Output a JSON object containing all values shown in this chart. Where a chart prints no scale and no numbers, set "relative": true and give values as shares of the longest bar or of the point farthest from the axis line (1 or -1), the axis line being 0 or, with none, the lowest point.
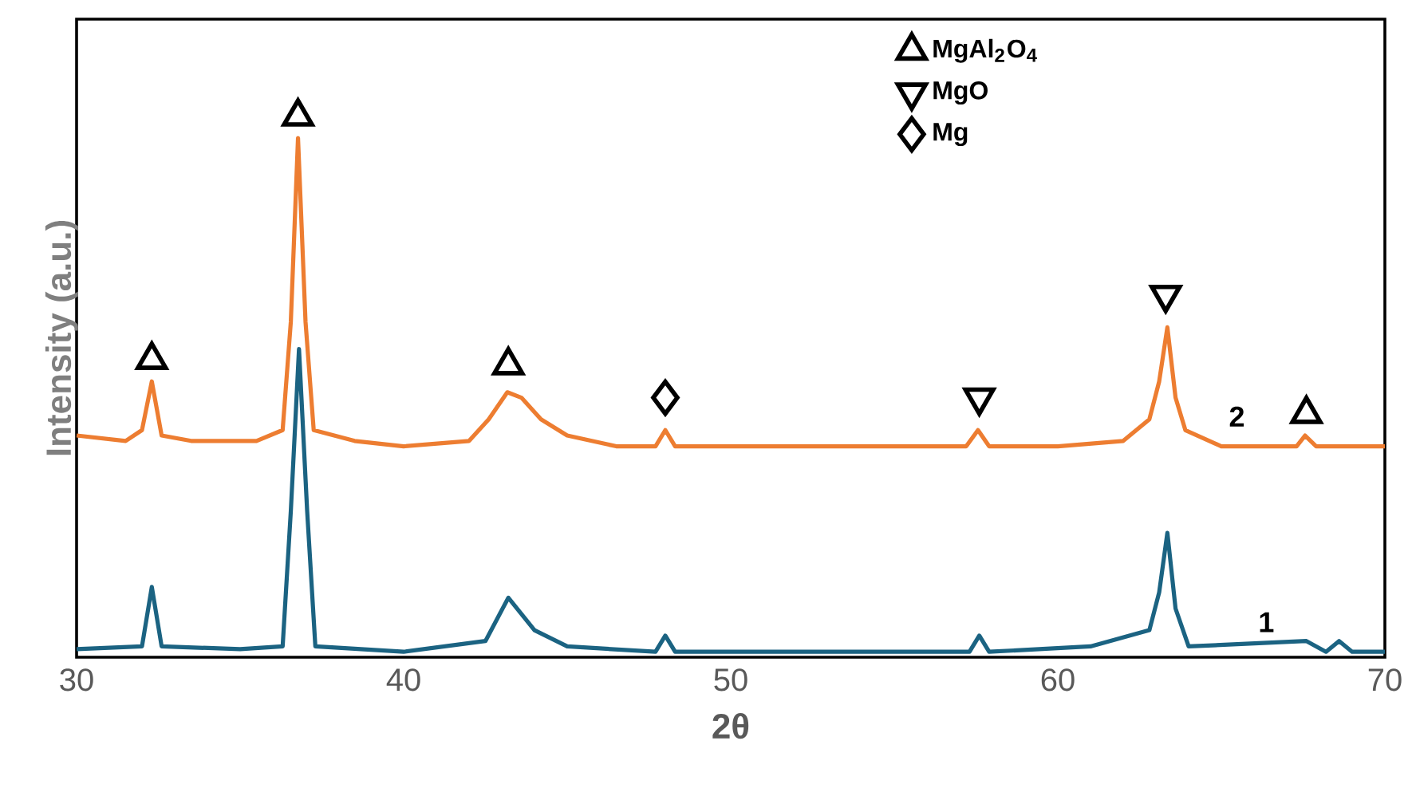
{
  "chart_data": {
    "type": "line",
    "xlabel": "2θ",
    "ylabel": "Intensity (a.u.)",
    "relative": true,
    "xlim": [
      30,
      70
    ],
    "xticks": [
      30,
      40,
      50,
      60,
      70
    ],
    "legend": "top",
    "grid": false,
    "series": [
      {
        "name": "1",
        "color": "#1b6382",
        "x": [
          30,
          32.0,
          32.3,
          32.6,
          35,
          36.3,
          36.55,
          36.8,
          37.05,
          37.3,
          40,
          42.5,
          43.2,
          44,
          45,
          47.7,
          48.0,
          48.3,
          57.3,
          57.6,
          57.9,
          61,
          62.8,
          63.1,
          63.35,
          63.6,
          64,
          67.6,
          68.2,
          68.6,
          69,
          70
        ],
        "values": [
          0.015,
          0.02,
          0.13,
          0.02,
          0.015,
          0.02,
          0.27,
          0.57,
          0.27,
          0.02,
          0.01,
          0.03,
          0.11,
          0.05,
          0.02,
          0.01,
          0.04,
          0.01,
          0.01,
          0.04,
          0.01,
          0.02,
          0.05,
          0.12,
          0.23,
          0.09,
          0.02,
          0.03,
          0.01,
          0.03,
          0.01,
          0.01
        ]
      },
      {
        "name": "2",
        "color": "#ed7d31",
        "x": [
          30,
          31.5,
          32.0,
          32.3,
          32.6,
          33.5,
          35.5,
          36.3,
          36.55,
          36.77,
          37.0,
          37.25,
          38.5,
          40,
          42,
          42.6,
          43.17,
          43.6,
          44.2,
          45,
          46.5,
          47.7,
          48.0,
          48.3,
          52,
          57.2,
          57.56,
          57.9,
          60,
          62,
          62.8,
          63.1,
          63.35,
          63.6,
          63.9,
          65,
          67.3,
          67.56,
          67.9,
          70
        ],
        "values": [
          0.41,
          0.4,
          0.42,
          0.51,
          0.41,
          0.4,
          0.4,
          0.42,
          0.62,
          0.96,
          0.62,
          0.42,
          0.4,
          0.39,
          0.4,
          0.44,
          0.49,
          0.48,
          0.44,
          0.41,
          0.39,
          0.39,
          0.42,
          0.39,
          0.39,
          0.39,
          0.42,
          0.39,
          0.39,
          0.4,
          0.44,
          0.51,
          0.61,
          0.48,
          0.42,
          0.39,
          0.39,
          0.41,
          0.39,
          0.39
        ]
      },
      {
        "name": "MgAl$_{2}$O$_{4}$",
        "type": "scatter",
        "marker": "triangle",
        "color": "#000000",
        "x": [
          32.3,
          36.77,
          43.2,
          67.6
        ],
        "values": [
          0.55,
          1.0,
          0.54,
          0.45
        ]
      },
      {
        "name": "MgO",
        "type": "scatter",
        "marker": "triangle-down",
        "color": "#000000",
        "x": [
          57.6,
          63.3
        ],
        "values": [
          0.48,
          0.67
        ]
      },
      {
        "name": "Mg",
        "type": "scatter",
        "marker": "diamond",
        "color": "#000000",
        "x": [
          48.0
        ],
        "values": [
          0.48
        ]
      }
    ]
  }
}
